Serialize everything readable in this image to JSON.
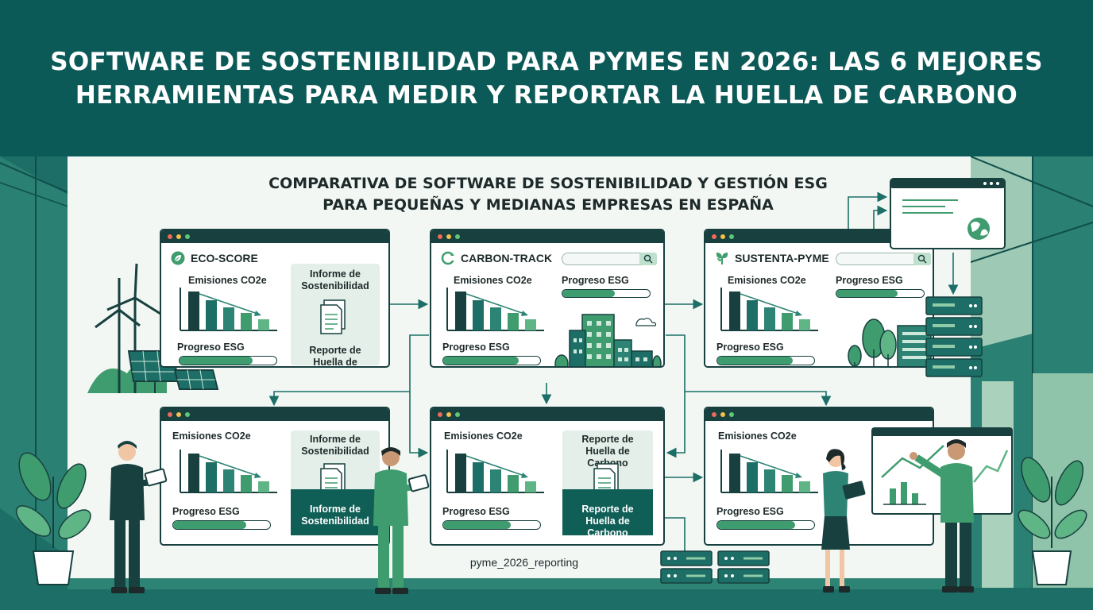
{
  "header": {
    "title_line1": "SOFTWARE DE SOSTENIBILIDAD PARA PYMES EN 2026: LAS 6 MEJORES",
    "title_line2": "HERRAMIENTAS PARA MEDIR Y REPORTAR LA HUELLA DE CARBONO"
  },
  "subtitle": {
    "line1": "COMPARATIVA DE SOFTWARE DE SOSTENIBILIDAD Y GESTIÓN ESG",
    "line2": "PARA PEQUEÑAS Y MEDIANAS EMPRESAS EN ESPAÑA"
  },
  "windows": [
    {
      "title": "ECO-SCORE",
      "icon": "leaf-icon",
      "emissions_label": "Emisiones CO2e",
      "progress_label": "Progreso ESG",
      "progress": 0.75,
      "panel_top": "Informe de Sostenibilidad",
      "panel_bottom": "Reporte de Huella de Carbono"
    },
    {
      "title": "CARBON-TRACK",
      "icon": "recycle-icon",
      "emissions_label": "Emisiones CO2e",
      "progress_label": "Progreso ESG",
      "progress_top_label": "Progreso ESG",
      "progress": 0.78,
      "progress_top": 0.6
    },
    {
      "title": "SUSTENTA-PYME",
      "icon": "sprout-icon",
      "emissions_label": "Emisiones CO2e",
      "progress_label": "Progreso ESG",
      "progress_top_label": "Progreso ESG",
      "progress": 0.78,
      "progress_top": 0.7
    },
    {
      "emissions_label": "Emisiones CO2e",
      "progress_label": "Progreso ESG",
      "progress": 0.75,
      "panel_top": "Informe de Sostenibilidad",
      "panel_bottom": "Informe de Sostenibilidad"
    },
    {
      "emissions_label": "Emisiones CO2e",
      "progress_label": "Progreso ESG",
      "progress": 0.7,
      "panel_top": "Reporte de Huella de Carbono",
      "panel_bottom": "Reporte de Huella de Carbono"
    },
    {
      "emissions_label": "Emisiones CO2e",
      "progress_label": "Progreso ESG",
      "progress": 0.8
    }
  ],
  "caption": "pyme_2026_reporting",
  "colors": {
    "banner": "#0b5a58",
    "dark": "#17403f",
    "teal": "#1c6e66",
    "green": "#3f9c6e",
    "light_green": "#8fcba6"
  }
}
